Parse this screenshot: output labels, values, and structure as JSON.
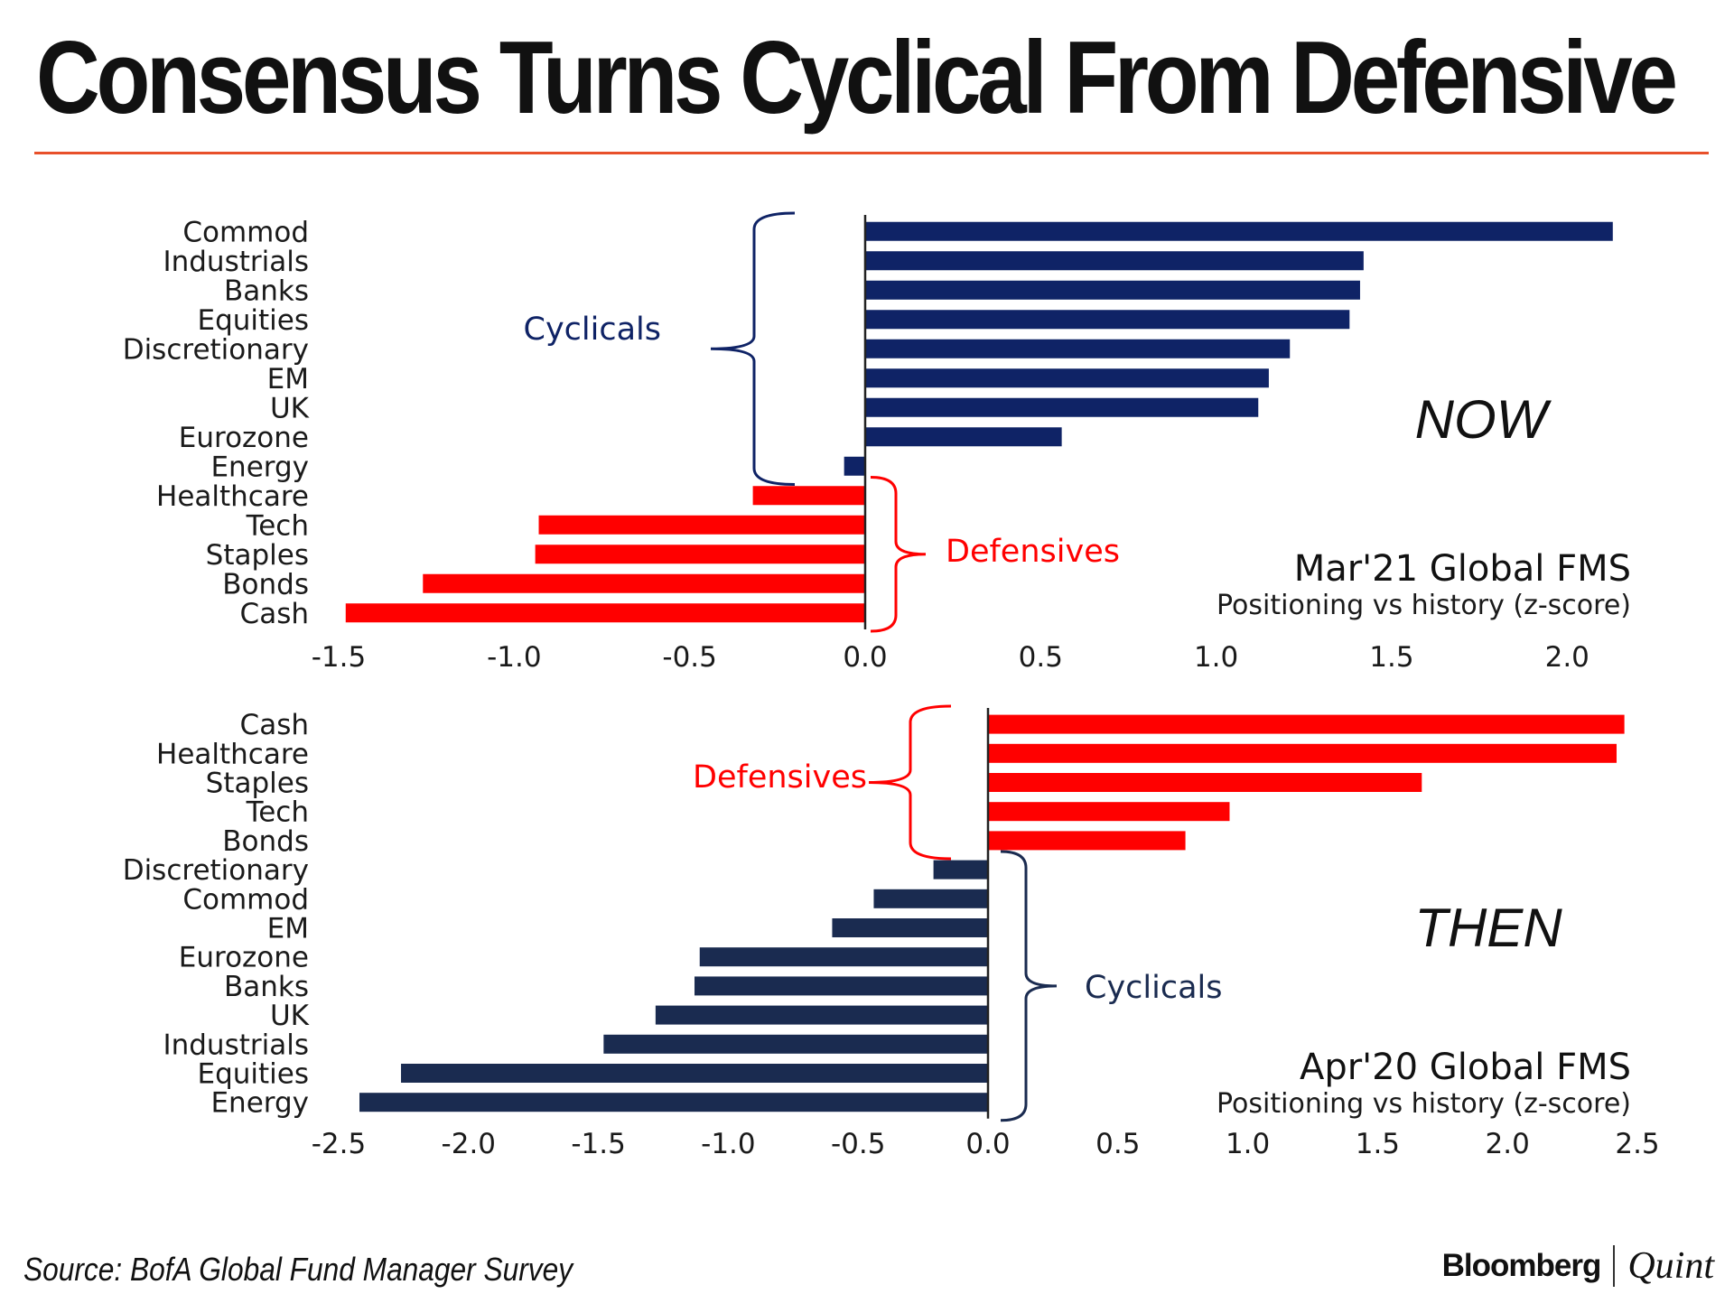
{
  "headline": "Consensus Turns Cyclical From Defensive",
  "source": "Source: BofA Global Fund Manager Survey",
  "brand": {
    "left": "Bloomberg",
    "right": "Quint"
  },
  "colors": {
    "cyclical": "#0f2366",
    "cyclical_then": "#1a2b50",
    "defensive": "#ff0000",
    "rule": "#e8502a"
  },
  "chart_data": [
    {
      "type": "bar",
      "orientation": "horizontal",
      "period_label": "NOW",
      "title": "Mar'21 Global FMS",
      "subtitle": "Positioning vs history (z-score)",
      "xlim": [
        -1.5,
        2.2
      ],
      "xticks": [
        "-1.5",
        "-1.0",
        "-0.5",
        "0.0",
        "0.5",
        "1.0",
        "1.5",
        "2.0"
      ],
      "categories": [
        "Commod",
        "Industrials",
        "Banks",
        "Equities",
        "Discretionary",
        "EM",
        "UK",
        "Eurozone",
        "Energy",
        "Healthcare",
        "Tech",
        "Staples",
        "Bonds",
        "Cash"
      ],
      "values": [
        2.13,
        1.42,
        1.41,
        1.38,
        1.21,
        1.15,
        1.12,
        0.56,
        -0.06,
        -0.32,
        -0.93,
        -0.94,
        -1.26,
        -1.48
      ],
      "groups": [
        "cyclical",
        "cyclical",
        "cyclical",
        "cyclical",
        "cyclical",
        "cyclical",
        "cyclical",
        "cyclical",
        "cyclical",
        "defensive",
        "defensive",
        "defensive",
        "defensive",
        "defensive"
      ],
      "group_labels": {
        "cyclical": "Cyclicals",
        "defensive": "Defensives"
      }
    },
    {
      "type": "bar",
      "orientation": "horizontal",
      "period_label": "THEN",
      "title": "Apr'20 Global FMS",
      "subtitle": "Positioning vs history (z-score)",
      "xlim": [
        -2.5,
        2.5
      ],
      "xticks": [
        "-2.5",
        "-2.0",
        "-1.5",
        "-1.0",
        "-0.5",
        "0.0",
        "0.5",
        "1.0",
        "1.5",
        "2.0",
        "2.5"
      ],
      "categories": [
        "Cash",
        "Healthcare",
        "Staples",
        "Tech",
        "Bonds",
        "Discretionary",
        "Commod",
        "EM",
        "Eurozone",
        "Banks",
        "UK",
        "Industrials",
        "Equities",
        "Energy"
      ],
      "values": [
        2.45,
        2.42,
        1.67,
        0.93,
        0.76,
        -0.21,
        -0.44,
        -0.6,
        -1.11,
        -1.13,
        -1.28,
        -1.48,
        -2.26,
        -2.42
      ],
      "groups": [
        "defensive",
        "defensive",
        "defensive",
        "defensive",
        "defensive",
        "cyclical",
        "cyclical",
        "cyclical",
        "cyclical",
        "cyclical",
        "cyclical",
        "cyclical",
        "cyclical",
        "cyclical"
      ],
      "group_labels": {
        "cyclical": "Cyclicals",
        "defensive": "Defensives"
      }
    }
  ]
}
